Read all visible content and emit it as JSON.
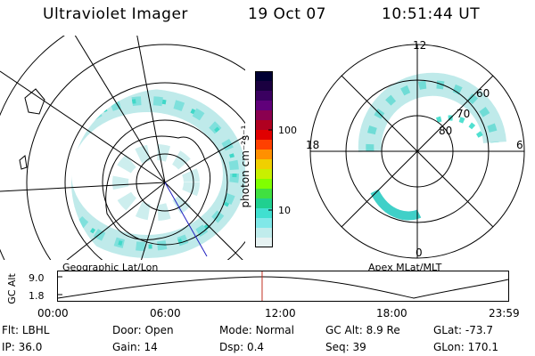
{
  "header": {
    "instrument": "Ultraviolet Imager",
    "date": "19 Oct 07",
    "time": "10:51:44 UT"
  },
  "colorbar": {
    "label": "photon cm⁻²s⁻¹",
    "ticks": [
      "100",
      "10"
    ],
    "colors": [
      "#000033",
      "#1a0040",
      "#3a0060",
      "#60007a",
      "#8a0050",
      "#b00020",
      "#e00000",
      "#ff4000",
      "#ff9000",
      "#f0d000",
      "#c8f000",
      "#80ff00",
      "#40e040",
      "#20d090",
      "#40e0d0",
      "#80e8e8",
      "#c0ecec",
      "#e6f2f2"
    ]
  },
  "geo_panel": {
    "label": "Geographic Lat/Lon"
  },
  "mag_panel": {
    "label": "Apex MLat/MLT",
    "mlt_labels": {
      "top": "12",
      "left": "18",
      "right": "6",
      "bottom": "0"
    },
    "lat_labels": [
      "60",
      "70",
      "80"
    ]
  },
  "orbit": {
    "axis_label": "GC Alt",
    "y_ticks": [
      "9.0",
      "1.8"
    ],
    "x_ticks": [
      "00:00",
      "06:00",
      "12:00",
      "18:00",
      "23:59"
    ],
    "current_hour": 10.86
  },
  "status": {
    "row1": [
      {
        "key": "Flt:",
        "value": "LBHL"
      },
      {
        "key": "Door:",
        "value": "Open"
      },
      {
        "key": "Mode:",
        "value": "Normal"
      },
      {
        "key": "GC Alt:",
        "value": "8.9 Re"
      },
      {
        "key": "GLat:",
        "value": "-73.7"
      }
    ],
    "row2": [
      {
        "key": "IP:",
        "value": "36.0"
      },
      {
        "key": "Gain:",
        "value": "14"
      },
      {
        "key": "Dsp:",
        "value": "0.4"
      },
      {
        "key": "Seq:",
        "value": "39"
      },
      {
        "key": "GLon:",
        "value": "170.1"
      }
    ]
  }
}
